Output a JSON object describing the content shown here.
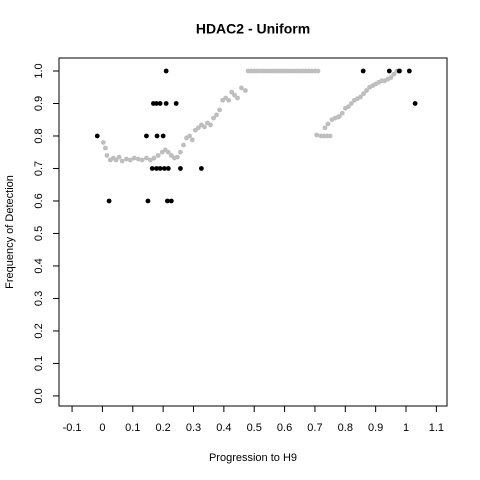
{
  "chart_data": {
    "type": "scatter",
    "title": "HDAC2 - Uniform",
    "x_label": "Progression to H9",
    "y_label": "Frequency of Detection",
    "xlim": [
      -0.143,
      1.135
    ],
    "ylim": [
      -0.031,
      1.04
    ],
    "xticks": [
      -0.1,
      0,
      0.1,
      0.2,
      0.3,
      0.4,
      0.5,
      0.6,
      0.7,
      0.8,
      0.9,
      1,
      1.1
    ],
    "yticks": [
      {
        "value": 0,
        "label": "0.0"
      },
      0.1,
      0.2,
      0.3,
      0.4,
      0.5,
      0.6,
      0.7,
      0.8,
      0.9,
      {
        "value": 1,
        "label": "1.0"
      }
    ],
    "series": [
      {
        "color": "#bebebe",
        "x": [
          0.003,
          0.01,
          0.015,
          0.026,
          0.036,
          0.045,
          0.055,
          0.065,
          0.079,
          0.092,
          0.105,
          0.118,
          0.131,
          0.145,
          0.158,
          0.17,
          0.184,
          0.197,
          0.207,
          0.217,
          0.227,
          0.237,
          0.247,
          0.257,
          0.267,
          0.277,
          0.287,
          0.296,
          0.306,
          0.316,
          0.326,
          0.336,
          0.346,
          0.356,
          0.366,
          0.376,
          0.386,
          0.396,
          0.406,
          0.416,
          0.426,
          0.435,
          0.445,
          0.458,
          0.471,
          0.48,
          0.49,
          0.5,
          0.51,
          0.52,
          0.53,
          0.54,
          0.55,
          0.56,
          0.57,
          0.58,
          0.59,
          0.6,
          0.61,
          0.62,
          0.63,
          0.64,
          0.65,
          0.66,
          0.67,
          0.68,
          0.69,
          0.7,
          0.71,
          0.706,
          0.72,
          0.73,
          0.74,
          0.75,
          0.733,
          0.743,
          0.756,
          0.766,
          0.776,
          0.78,
          0.79,
          0.8,
          0.81,
          0.82,
          0.83,
          0.84,
          0.85,
          0.86,
          0.87,
          0.88,
          0.89,
          0.9,
          0.91,
          0.92,
          0.93,
          0.94,
          0.95,
          0.96,
          0.97,
          0.98
        ],
        "y": [
          0.78,
          0.763,
          0.74,
          0.726,
          0.732,
          0.726,
          0.735,
          0.723,
          0.729,
          0.726,
          0.732,
          0.729,
          0.726,
          0.732,
          0.726,
          0.732,
          0.74,
          0.75,
          0.757,
          0.75,
          0.74,
          0.732,
          0.735,
          0.75,
          0.772,
          0.794,
          0.8,
          0.788,
          0.818,
          0.825,
          0.834,
          0.828,
          0.84,
          0.834,
          0.855,
          0.865,
          0.88,
          0.91,
          0.917,
          0.91,
          0.935,
          0.926,
          0.917,
          0.948,
          0.94,
          1,
          1,
          1,
          1,
          1,
          1,
          1,
          1,
          1,
          1,
          1,
          1,
          1,
          1,
          1,
          1,
          1,
          1,
          1,
          1,
          1,
          1,
          1,
          1,
          0.803,
          0.8,
          0.8,
          0.8,
          0.8,
          0.825,
          0.837,
          0.85,
          0.855,
          0.858,
          0.86,
          0.87,
          0.885,
          0.89,
          0.9,
          0.91,
          0.915,
          0.92,
          0.93,
          0.94,
          0.95,
          0.955,
          0.96,
          0.965,
          0.97,
          0.97,
          0.975,
          0.98,
          0.99,
          1,
          1
        ]
      },
      {
        "color": "#000000",
        "x": [
          -0.017,
          0.022,
          0.145,
          0.15,
          0.168,
          0.178,
          0.19,
          0.21,
          0.243,
          0.18,
          0.2,
          0.164,
          0.178,
          0.19,
          0.204,
          0.217,
          0.21,
          0.214,
          0.227,
          0.257,
          0.326,
          0.859,
          0.945,
          0.978,
          1.011,
          1.03
        ],
        "y": [
          0.8,
          0.6,
          0.8,
          0.6,
          0.9,
          0.9,
          0.9,
          0.9,
          0.9,
          0.8,
          0.8,
          0.7,
          0.7,
          0.7,
          0.7,
          0.7,
          1,
          0.6,
          0.6,
          0.7,
          0.7,
          1,
          1,
          1,
          1,
          0.9
        ]
      }
    ]
  }
}
